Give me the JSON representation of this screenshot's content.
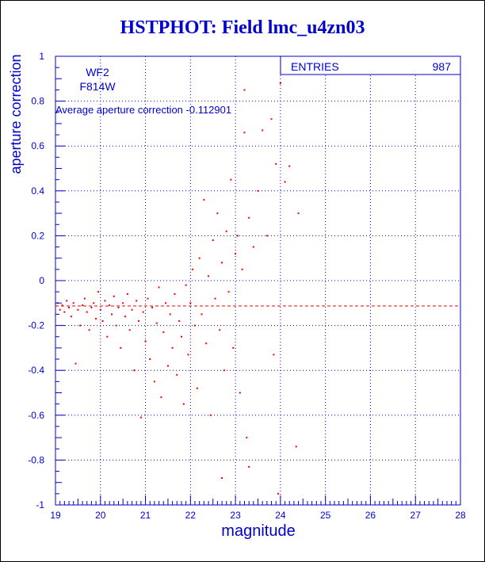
{
  "title": "HSTPHOT: Field lmc_u4zn03",
  "colors": {
    "axis": "#0000cc",
    "points": "#ee0000",
    "grid": "#0000cc",
    "mean_line": "#ee0000"
  },
  "chart_data": {
    "type": "scatter",
    "title": "HSTPHOT: Field lmc_u4zn03",
    "xlabel": "magnitude",
    "ylabel": "aperture correction",
    "xlim": [
      19,
      28
    ],
    "ylim": [
      -1,
      1
    ],
    "x_ticks": [
      "19",
      "20",
      "21",
      "22",
      "23",
      "24",
      "25",
      "26",
      "27",
      "28"
    ],
    "y_ticks": [
      "-1",
      "-0.8",
      "-0.6",
      "-0.4",
      "-0.2",
      "0",
      "0.2",
      "0.4",
      "0.6",
      "0.8",
      "1"
    ],
    "grid": true,
    "camera": "WF2",
    "filter": "F814W",
    "annotation": "Average aperture correction -0.112901",
    "mean_value": -0.112901,
    "stats_box": {
      "label": "ENTRIES",
      "value": "987"
    },
    "points": [
      [
        19.05,
        -0.1
      ],
      [
        19.1,
        -0.13
      ],
      [
        19.15,
        -0.11
      ],
      [
        19.2,
        -0.14
      ],
      [
        19.25,
        -0.09
      ],
      [
        19.3,
        -0.12
      ],
      [
        19.35,
        -0.16
      ],
      [
        19.4,
        -0.1
      ],
      [
        19.45,
        -0.37
      ],
      [
        19.5,
        -0.13
      ],
      [
        19.55,
        -0.2
      ],
      [
        19.6,
        -0.11
      ],
      [
        19.65,
        -0.08
      ],
      [
        19.7,
        -0.14
      ],
      [
        19.75,
        -0.22
      ],
      [
        19.8,
        -0.12
      ],
      [
        19.85,
        -0.1
      ],
      [
        19.9,
        -0.17
      ],
      [
        19.95,
        -0.05
      ],
      [
        20.0,
        -0.13
      ],
      [
        20.05,
        -0.18
      ],
      [
        20.1,
        -0.09
      ],
      [
        20.15,
        -0.25
      ],
      [
        20.2,
        -0.11
      ],
      [
        20.25,
        -0.15
      ],
      [
        20.3,
        -0.07
      ],
      [
        20.35,
        -0.2
      ],
      [
        20.4,
        -0.12
      ],
      [
        20.45,
        -0.3
      ],
      [
        20.5,
        -0.1
      ],
      [
        20.55,
        -0.16
      ],
      [
        20.6,
        -0.06
      ],
      [
        20.65,
        -0.22
      ],
      [
        20.7,
        -0.13
      ],
      [
        20.75,
        -0.4
      ],
      [
        20.8,
        -0.09
      ],
      [
        20.85,
        -0.18
      ],
      [
        20.9,
        -0.61
      ],
      [
        20.95,
        -0.14
      ],
      [
        21.0,
        -0.27
      ],
      [
        21.05,
        -0.08
      ],
      [
        21.1,
        -0.35
      ],
      [
        21.15,
        -0.12
      ],
      [
        21.2,
        -0.45
      ],
      [
        21.25,
        -0.19
      ],
      [
        21.3,
        -0.03
      ],
      [
        21.35,
        -0.52
      ],
      [
        21.4,
        -0.23
      ],
      [
        21.45,
        -0.1
      ],
      [
        21.5,
        -0.38
      ],
      [
        21.55,
        -0.15
      ],
      [
        21.6,
        -0.3
      ],
      [
        21.65,
        -0.06
      ],
      [
        21.7,
        -0.42
      ],
      [
        21.75,
        -0.18
      ],
      [
        21.8,
        -0.25
      ],
      [
        21.85,
        -0.55
      ],
      [
        21.9,
        -0.02
      ],
      [
        21.95,
        -0.33
      ],
      [
        22.0,
        -0.1
      ],
      [
        22.05,
        0.05
      ],
      [
        22.1,
        -0.2
      ],
      [
        22.15,
        -0.48
      ],
      [
        22.2,
        0.1
      ],
      [
        22.25,
        -0.15
      ],
      [
        22.3,
        0.36
      ],
      [
        22.35,
        -0.28
      ],
      [
        22.4,
        0.02
      ],
      [
        22.45,
        -0.6
      ],
      [
        22.5,
        0.18
      ],
      [
        22.55,
        -0.08
      ],
      [
        22.6,
        0.3
      ],
      [
        22.65,
        -0.22
      ],
      [
        22.7,
        0.08
      ],
      [
        22.75,
        -0.4
      ],
      [
        22.8,
        0.22
      ],
      [
        22.85,
        -0.05
      ],
      [
        22.9,
        0.45
      ],
      [
        22.95,
        -0.3
      ],
      [
        23.0,
        0.12
      ],
      [
        23.05,
        0.2
      ],
      [
        23.1,
        -0.5
      ],
      [
        23.15,
        0.05
      ],
      [
        23.2,
        0.66
      ],
      [
        23.25,
        -0.7
      ],
      [
        23.3,
        0.28
      ],
      [
        23.4,
        0.15
      ],
      [
        23.5,
        0.4
      ],
      [
        23.6,
        0.67
      ],
      [
        23.7,
        0.2
      ],
      [
        23.8,
        0.72
      ],
      [
        23.85,
        -0.33
      ],
      [
        23.9,
        0.52
      ],
      [
        24.0,
        0.88
      ],
      [
        24.1,
        0.44
      ],
      [
        24.2,
        0.51
      ],
      [
        24.35,
        -0.74
      ],
      [
        24.4,
        0.3
      ],
      [
        23.3,
        -0.83
      ],
      [
        22.7,
        -0.88
      ],
      [
        23.95,
        -0.95
      ],
      [
        23.2,
        0.85
      ]
    ]
  }
}
